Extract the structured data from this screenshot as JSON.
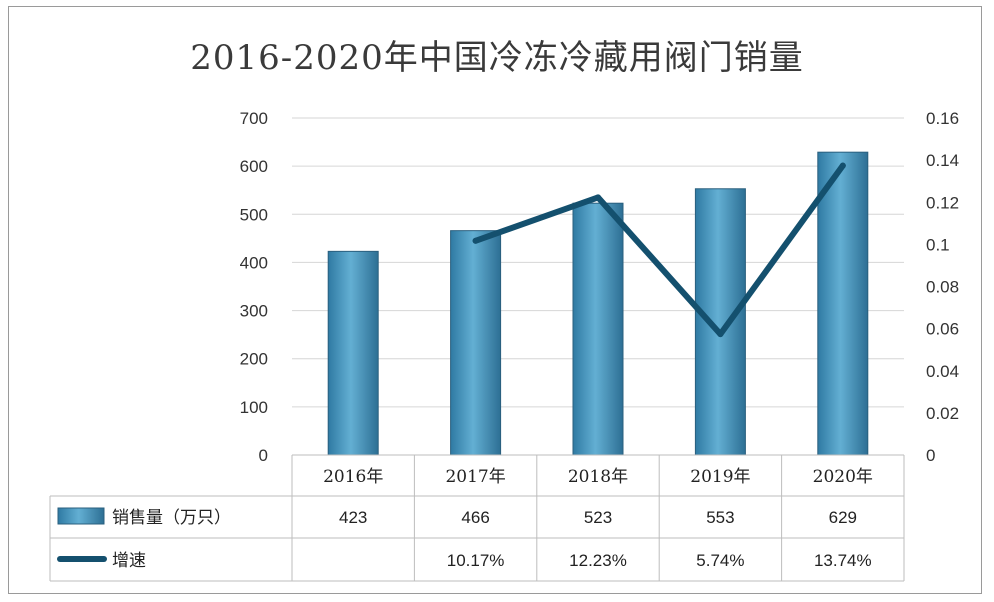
{
  "chart_data": {
    "type": "bar",
    "title": "2016-2020年中国冷冻冷藏用阀门销量",
    "categories": [
      "2016年",
      "2017年",
      "2018年",
      "2019年",
      "2020年"
    ],
    "series": [
      {
        "name": "销售量（万只）",
        "type": "bar",
        "axis": "left",
        "values": [
          423,
          466,
          523,
          553,
          629
        ],
        "color": "#4f97bd"
      },
      {
        "name": "增速",
        "type": "line",
        "axis": "right",
        "values": [
          null,
          0.1017,
          0.1223,
          0.0574,
          0.1374
        ],
        "color": "#14506e"
      }
    ],
    "y_left": {
      "min": 0,
      "max": 700,
      "ticks": [
        "0",
        "100",
        "200",
        "300",
        "400",
        "500",
        "600",
        "700"
      ]
    },
    "y_right": {
      "min": 0,
      "max": 0.16,
      "ticks": [
        "0",
        "0.02",
        "0.04",
        "0.06",
        "0.08",
        "0.1",
        "0.12",
        "0.14",
        "0.16"
      ]
    },
    "table": {
      "rows": [
        {
          "label": "销售量（万只）",
          "cells": [
            "423",
            "466",
            "523",
            "553",
            "629"
          ]
        },
        {
          "label": "增速",
          "cells": [
            "",
            "10.17%",
            "12.23%",
            "5.74%",
            "13.74%"
          ]
        }
      ]
    },
    "grid": true,
    "legend": "table"
  }
}
